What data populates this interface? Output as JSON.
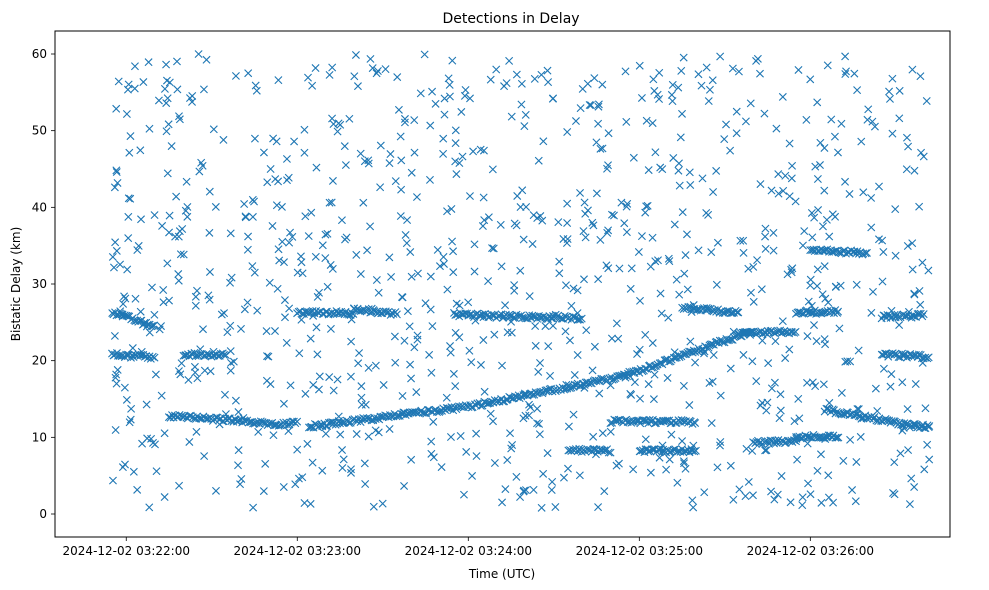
{
  "chart_data": {
    "type": "scatter",
    "title": "Detections in Delay",
    "xlabel": "Time (UTC)",
    "ylabel": "Bistatic Delay (km)",
    "x_ticks": [
      "2024-12-02 03:22:00",
      "2024-12-02 03:23:00",
      "2024-12-02 03:24:00",
      "2024-12-02 03:25:00",
      "2024-12-02 03:26:00"
    ],
    "y_ticks": [
      "0",
      "10",
      "20",
      "30",
      "40",
      "50",
      "60"
    ],
    "xlim": [
      "2024-12-02 03:21:35",
      "2024-12-02 03:26:49"
    ],
    "ylim": [
      -3,
      63
    ],
    "marker": "x",
    "color": "#1f77b4",
    "grid": false,
    "tracks": [
      {
        "x": [
          "03:21:55",
          "03:22:10"
        ],
        "y": [
          20.8,
          20.4
        ]
      },
      {
        "x": [
          "03:21:55",
          "03:22:10"
        ],
        "y": [
          26.3,
          24.5
        ]
      },
      {
        "x": [
          "03:22:20",
          "03:22:35"
        ],
        "y": [
          20.8,
          20.7
        ]
      },
      {
        "x": [
          "03:22:15",
          "03:22:38"
        ],
        "y": [
          12.8,
          12.2
        ]
      },
      {
        "x": [
          "03:22:38",
          "03:22:55"
        ],
        "y": [
          12.2,
          11.6
        ]
      },
      {
        "x": [
          "03:22:55",
          "03:23:00"
        ],
        "y": [
          11.8,
          11.9
        ]
      },
      {
        "x": [
          "03:23:00",
          "03:23:20"
        ],
        "y": [
          26.3,
          26.2
        ]
      },
      {
        "x": [
          "03:23:20",
          "03:23:35"
        ],
        "y": [
          26.7,
          26.1
        ]
      },
      {
        "x": [
          "03:23:04",
          "03:24:00"
        ],
        "y": [
          11.4,
          14.0
        ]
      },
      {
        "x": [
          "03:24:00",
          "03:24:55"
        ],
        "y": [
          14.0,
          18.0
        ]
      },
      {
        "x": [
          "03:24:55",
          "03:25:25"
        ],
        "y": [
          18.0,
          22.0
        ]
      },
      {
        "x": [
          "03:25:25",
          "03:25:40"
        ],
        "y": [
          22.0,
          23.8
        ]
      },
      {
        "x": [
          "03:23:55",
          "03:24:30"
        ],
        "y": [
          26.0,
          25.6
        ]
      },
      {
        "x": [
          "03:24:30",
          "03:24:40"
        ],
        "y": [
          25.8,
          25.4
        ]
      },
      {
        "x": [
          "03:24:35",
          "03:24:50"
        ],
        "y": [
          8.3,
          8.2
        ]
      },
      {
        "x": [
          "03:24:50",
          "03:25:20"
        ],
        "y": [
          12.1,
          12.0
        ]
      },
      {
        "x": [
          "03:25:00",
          "03:25:20"
        ],
        "y": [
          8.2,
          8.3
        ]
      },
      {
        "x": [
          "03:25:15",
          "03:25:35"
        ],
        "y": [
          27.0,
          26.2
        ]
      },
      {
        "x": [
          "03:25:40",
          "03:25:55"
        ],
        "y": [
          9.3,
          9.5
        ]
      },
      {
        "x": [
          "03:25:35",
          "03:25:55"
        ],
        "y": [
          23.5,
          23.8
        ]
      },
      {
        "x": [
          "03:25:55",
          "03:26:10"
        ],
        "y": [
          26.3,
          26.4
        ]
      },
      {
        "x": [
          "03:26:00",
          "03:26:20"
        ],
        "y": [
          34.5,
          34.0
        ]
      },
      {
        "x": [
          "03:25:55",
          "03:26:10"
        ],
        "y": [
          10.0,
          10.2
        ]
      },
      {
        "x": [
          "03:26:05",
          "03:26:35"
        ],
        "y": [
          13.6,
          11.6
        ]
      },
      {
        "x": [
          "03:26:25",
          "03:26:42"
        ],
        "y": [
          20.8,
          20.5
        ]
      },
      {
        "x": [
          "03:26:25",
          "03:26:40"
        ],
        "y": [
          25.7,
          25.9
        ]
      },
      {
        "x": [
          "03:26:35",
          "03:26:42"
        ],
        "y": [
          11.5,
          11.4
        ]
      }
    ],
    "clutter_count": 1000,
    "clutter_delay_range": [
      0,
      60
    ]
  }
}
